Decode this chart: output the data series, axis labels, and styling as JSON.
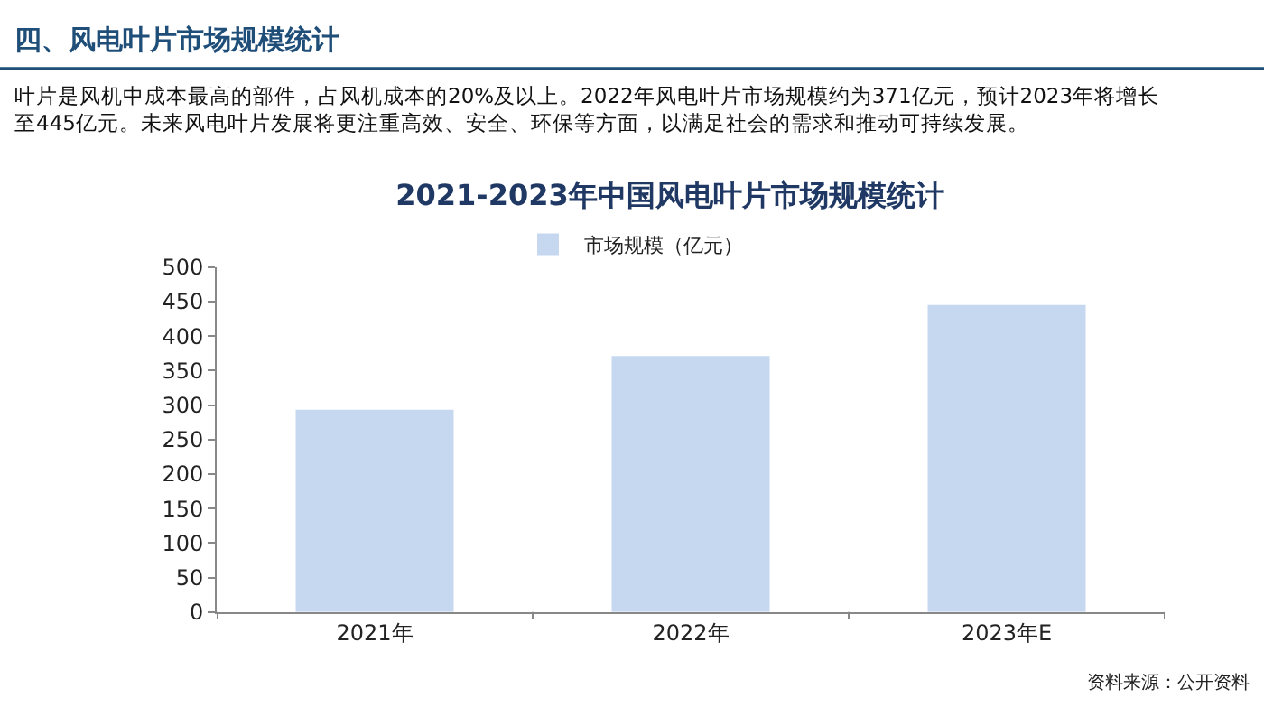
{
  "chart_data": {
    "type": "bar",
    "title": "2021-2023年中国风电叶片市场规模统计",
    "categories": [
      "2021年",
      "2022年",
      "2023年E"
    ],
    "series": [
      {
        "name": "市场规模（亿元）",
        "color": "#c5d8f0",
        "values": [
          293,
          371,
          445
        ]
      }
    ],
    "ylim": [
      0,
      500
    ],
    "yticks": [
      0,
      50,
      100,
      150,
      200,
      250,
      300,
      350,
      400,
      450,
      500
    ],
    "legend": "top",
    "annotations": [
      "四、风电叶片市场规模统计",
      "叶片是风机中成本最高的部件，占风机成本的20%及以上。2022年风电叶片市场规模约为371亿元，预计2023年将增长至445亿元。未来风电叶片发展将更注重高效、安全、环保等方面，以满足社会的需求和推动可持续发展。",
      "资料来源：公开资料"
    ]
  }
}
